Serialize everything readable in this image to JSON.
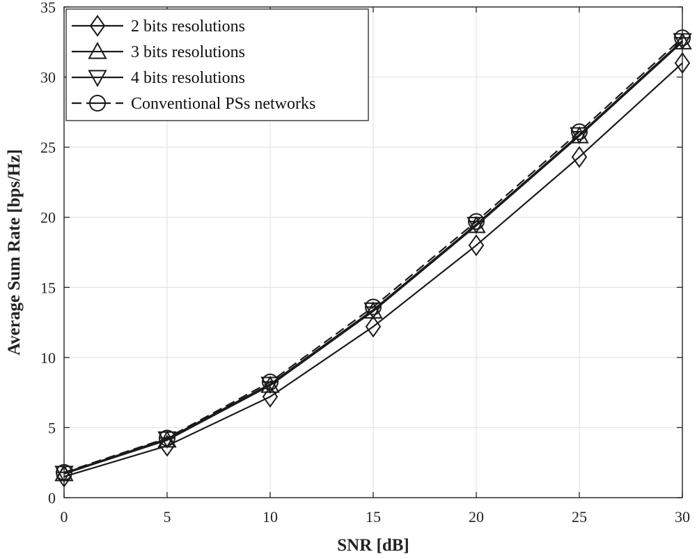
{
  "chart_data": {
    "type": "line",
    "title": "",
    "xlabel": "SNR [dB]",
    "ylabel": "Average Sum Rate [bps/Hz]",
    "xlim": [
      0,
      30
    ],
    "ylim": [
      0,
      35
    ],
    "xticks": [
      0,
      5,
      10,
      15,
      20,
      25,
      30
    ],
    "yticks": [
      0,
      5,
      10,
      15,
      20,
      25,
      30,
      35
    ],
    "grid": true,
    "legend_position": "top-left",
    "x": [
      0,
      5,
      10,
      15,
      20,
      25,
      30
    ],
    "series": [
      {
        "name": "2 bits resolutions",
        "marker": "diamond",
        "dash": "solid",
        "values": [
          1.5,
          3.7,
          7.2,
          12.2,
          18.0,
          24.3,
          31.0
        ]
      },
      {
        "name": "3 bits resolutions",
        "marker": "triangle-up",
        "dash": "solid",
        "values": [
          1.7,
          4.1,
          8.0,
          13.3,
          19.4,
          25.8,
          32.5
        ]
      },
      {
        "name": "4 bits resolutions",
        "marker": "triangle-down",
        "dash": "solid",
        "values": [
          1.75,
          4.2,
          8.1,
          13.4,
          19.5,
          25.9,
          32.6
        ]
      },
      {
        "name": "Conventional PSs networks",
        "marker": "circle-bar",
        "dash": "dashed",
        "values": [
          1.8,
          4.25,
          8.25,
          13.6,
          19.7,
          26.1,
          32.8
        ]
      }
    ]
  }
}
